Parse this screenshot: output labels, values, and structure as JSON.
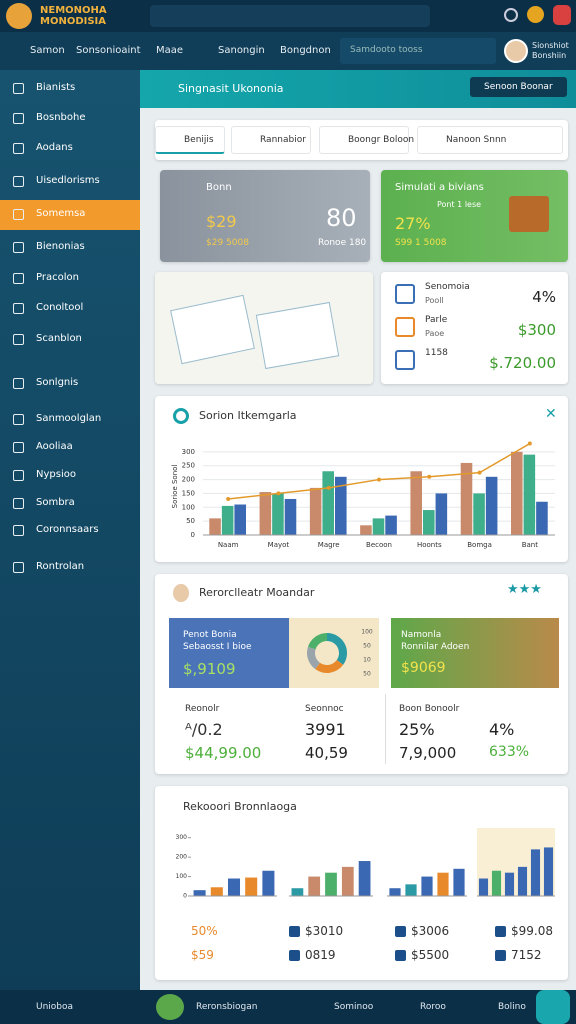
{
  "header": {
    "logo": [
      "NEMONOHA",
      "MONODISIA"
    ]
  },
  "nav": {
    "items": [
      "Samon",
      "Sonsonioaint",
      "Maae",
      "Sanongin",
      "Bongdnon"
    ],
    "dropdown": "Samdooto tooss",
    "user": [
      "Sionshiot",
      "Bonshiin"
    ]
  },
  "sidebar": {
    "items": [
      "Bianists",
      "Bosnbohe",
      "Aodans",
      "Uisedlorisms",
      "Somemsa",
      "Bienonias",
      "Pracolon",
      "Conoltool",
      "Scanblon",
      "Sonlgnis",
      "Sanmoolglan",
      "Aooliaa",
      "Nypsioo",
      "Sombra",
      "Coronnsaars",
      "Rontrolan"
    ],
    "active": 4
  },
  "page": {
    "title": "Singnasit Ukononia",
    "button": "Senoon Boonar",
    "tabs": [
      "Benijis",
      "Rannabior",
      "Boongr Boloon",
      "Nanoon Snnn"
    ]
  },
  "summary": {
    "gray": {
      "title": "Bonn",
      "value": "$29",
      "big": "80",
      "sub": "$29 5008",
      "note": "Ronoe 180"
    },
    "green": {
      "title": "Simulati a bivians",
      "value": "27%",
      "sub": "Pont 1 lese",
      "note": "S99 1 5008"
    }
  },
  "list": {
    "rows": [
      {
        "name": "Senomoia",
        "sub": "Pooll",
        "value": "4%"
      },
      {
        "name": "Parle",
        "sub": "Paoe",
        "value": "$300"
      },
      {
        "name": "1158",
        "value": "$.720.00"
      }
    ]
  },
  "chart_data": {
    "type": "bar",
    "title": "Sorion Itkemgarla",
    "ylabel": "Sorioe Sonol",
    "categories": [
      "Naam",
      "Mayot",
      "Magre",
      "Becoon",
      "Hoonts",
      "Bomga",
      "Bant"
    ],
    "series": [
      {
        "color": "#c98a6c",
        "values": [
          60,
          155,
          170,
          35,
          230,
          260,
          300
        ]
      },
      {
        "color": "#3fae8a",
        "values": [
          105,
          150,
          230,
          60,
          90,
          150,
          290
        ]
      },
      {
        "color": "#3b68b3",
        "values": [
          110,
          130,
          210,
          70,
          150,
          210,
          120
        ]
      },
      {
        "type": "line",
        "color": "#e39a2b",
        "values": [
          130,
          150,
          170,
          200,
          210,
          225,
          330
        ]
      }
    ],
    "ylim": [
      0,
      350
    ],
    "yticks": [
      0,
      50,
      100,
      150,
      200,
      250,
      300
    ],
    "grid": true
  },
  "monitor": {
    "title": "Rerorclleatr Moandar",
    "blue": {
      "title": "Penot Bonia",
      "sub": "Sebaosst I bioe",
      "value": "$,9109"
    },
    "donut": {
      "values": [
        35,
        25,
        20,
        20
      ],
      "colors": [
        "#2a9aa5",
        "#e88a2c",
        "#9aa4ab",
        "#4caf6a"
      ],
      "labels": [
        "100",
        "50",
        "10",
        "50"
      ]
    },
    "green": {
      "title": "Namonla",
      "sub": "Ronnilar Adoen",
      "value": "$9069"
    },
    "left": {
      "a": "Reonolr",
      "b": "Seonnoc",
      "v1": "ᴬ/0.2",
      "v2": "3991",
      "v3": "$44,99.00",
      "v4": "40,59"
    },
    "right": {
      "a": "Boon Bonoolr",
      "v1": "25%",
      "v2": "4%",
      "v3": "7,9,000",
      "v4": "633%"
    }
  },
  "report": {
    "title": "Rekooori Bronnlaoga",
    "ylim": [
      0,
      350
    ],
    "yticks": [
      0,
      100,
      200,
      300
    ],
    "charts": [
      {
        "values": [
          30,
          45,
          90,
          95,
          130
        ],
        "colors": [
          "#3b68b3",
          "#e88a2c",
          "#3b68b3",
          "#e88a2c",
          "#3b68b3"
        ]
      },
      {
        "values": [
          40,
          100,
          120,
          150,
          180
        ],
        "colors": [
          "#2a9aa5",
          "#c98a6c",
          "#4caf6a",
          "#c98a6c",
          "#3b68b3"
        ]
      },
      {
        "values": [
          40,
          60,
          100,
          120,
          140
        ],
        "colors": [
          "#3b68b3",
          "#2a9aa5",
          "#3b68b3",
          "#e88a2c",
          "#3b68b3"
        ]
      },
      {
        "values": [
          90,
          130,
          120,
          150,
          240,
          250
        ],
        "colors": [
          "#3b68b3",
          "#4caf6a",
          "#3b68b3",
          "#3b68b3",
          "#3b68b3",
          "#3b68b3"
        ]
      }
    ],
    "stats": [
      "50%",
      "$3010",
      "$3006",
      "$99.08",
      "$59",
      "0819",
      "$5500",
      "7152"
    ]
  },
  "bottom": {
    "items": [
      "Unioboa",
      "Reronsbiogan",
      "Sominoo",
      "Roroo",
      "Bolino"
    ]
  }
}
